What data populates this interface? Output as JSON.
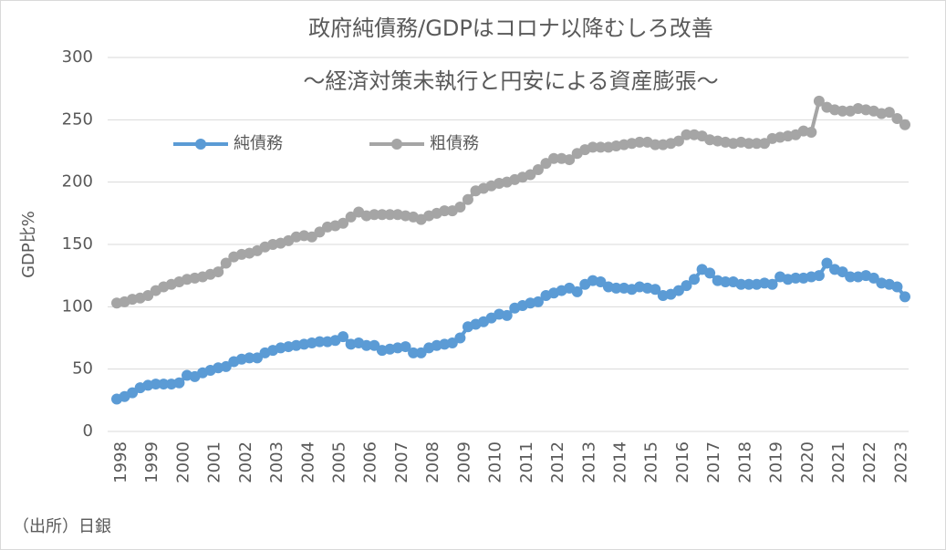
{
  "chart_data": {
    "type": "line",
    "title": "政府純債務/GDPはコロナ以降むしろ改善",
    "subtitle": "～経済対策未執行と円安による資産膨張～",
    "y_label": "GDP比%",
    "note": "（出所）日銀",
    "categories": [
      "1998",
      null,
      null,
      null,
      "1999",
      null,
      null,
      null,
      "2000",
      null,
      null,
      null,
      "2001",
      null,
      null,
      null,
      "2002",
      null,
      null,
      null,
      "2003",
      null,
      null,
      null,
      "2004",
      null,
      null,
      null,
      "2005",
      null,
      null,
      null,
      "2006",
      null,
      null,
      null,
      "2007",
      null,
      null,
      null,
      "2008",
      null,
      null,
      null,
      "2009",
      null,
      null,
      null,
      "2010",
      null,
      null,
      null,
      "2011",
      null,
      null,
      null,
      "2012",
      null,
      null,
      null,
      "2013",
      null,
      null,
      null,
      "2014",
      null,
      null,
      null,
      "2015",
      null,
      null,
      null,
      "2016",
      null,
      null,
      null,
      "2017",
      null,
      null,
      null,
      "2018",
      null,
      null,
      null,
      "2019",
      null,
      null,
      null,
      "2020",
      null,
      null,
      null,
      "2021",
      null,
      null,
      null,
      "2022",
      null,
      null,
      null,
      "2023",
      null
    ],
    "series": [
      {
        "name": "純債務",
        "color": "#5b9bd5",
        "values": [
          26,
          28,
          31,
          35,
          37,
          38,
          38,
          38,
          39,
          45,
          44,
          47,
          49,
          51,
          52,
          56,
          58,
          59,
          59,
          63,
          65,
          67,
          68,
          69,
          70,
          71,
          72,
          72,
          73,
          76,
          70,
          71,
          69,
          69,
          65,
          66,
          67,
          68,
          63,
          63,
          67,
          69,
          70,
          71,
          75,
          84,
          86,
          88,
          91,
          94,
          93,
          99,
          101,
          103,
          104,
          109,
          111,
          113,
          115,
          112,
          118,
          121,
          120,
          116,
          115,
          115,
          114,
          116,
          115,
          114,
          109,
          110,
          113,
          117,
          122,
          130,
          127,
          121,
          120,
          120,
          118,
          118,
          118,
          119,
          118,
          124,
          122,
          123,
          123,
          124,
          125,
          135,
          130,
          128,
          124,
          124,
          125,
          123,
          119,
          118,
          116,
          108
        ]
      },
      {
        "name": "粗債務",
        "color": "#a5a5a5",
        "values": [
          103,
          104,
          106,
          107,
          109,
          113,
          116,
          118,
          120,
          122,
          123,
          124,
          126,
          128,
          135,
          140,
          142,
          143,
          145,
          148,
          150,
          151,
          153,
          156,
          157,
          156,
          160,
          164,
          165,
          167,
          172,
          176,
          173,
          174,
          174,
          174,
          174,
          173,
          172,
          170,
          173,
          175,
          177,
          177,
          180,
          186,
          193,
          195,
          197,
          199,
          200,
          202,
          204,
          206,
          210,
          215,
          219,
          219,
          218,
          223,
          226,
          228,
          228,
          228,
          229,
          230,
          231,
          232,
          232,
          230,
          230,
          231,
          233,
          238,
          238,
          237,
          234,
          233,
          232,
          231,
          232,
          231,
          231,
          231,
          235,
          236,
          237,
          238,
          241,
          240,
          265,
          260,
          258,
          257,
          257,
          259,
          258,
          257,
          255,
          256,
          251,
          246
        ]
      }
    ],
    "ylim": [
      0,
      300
    ],
    "yticks": [
      0,
      50,
      100,
      150,
      200,
      250,
      300
    ],
    "grid": true,
    "legend": "top-left"
  }
}
